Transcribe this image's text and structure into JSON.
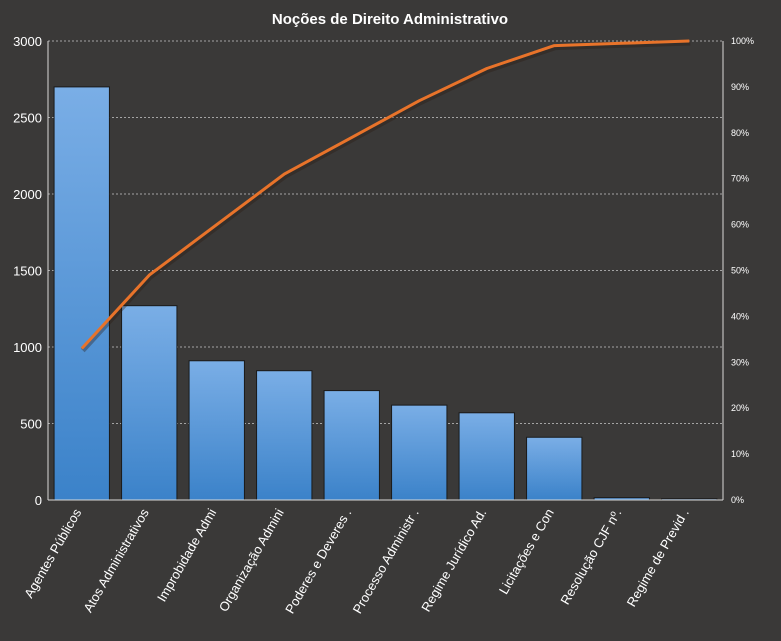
{
  "chart_data": {
    "type": "bar",
    "title": "Noções de Direito  Administrativo",
    "categories": [
      "Agentes Públicos",
      "Atos Administrativos",
      "Improbidade Admi",
      "Organização Admini",
      "Poderes e Deveres .",
      "Processo Administr .",
      "Regime Jurídico Ad.",
      "Licitações e Con",
      "Resolução CJF nº.",
      "Regime de Previd ."
    ],
    "series": [
      {
        "type": "bar",
        "values": [
          2700,
          1270,
          910,
          845,
          715,
          620,
          570,
          410,
          15,
          8
        ]
      },
      {
        "type": "line",
        "axis": "right",
        "values": [
          0.33,
          0.49,
          0.6,
          0.71,
          0.79,
          0.87,
          0.94,
          0.99,
          0.995,
          1.0
        ]
      }
    ],
    "ylim": [
      0,
      3000
    ],
    "yticks": [
      0,
      500,
      1000,
      1500,
      2000,
      2500,
      3000
    ],
    "y2lim": [
      0,
      1
    ],
    "y2ticks": [
      "0%",
      "10%",
      "20%",
      "30%",
      "40%",
      "50%",
      "60%",
      "70%",
      "80%",
      "90%",
      "100%"
    ],
    "grid": true,
    "colors": {
      "background": "#3a3938",
      "bar_top": "#7aaee6",
      "bar_bottom": "#3b82c9",
      "line": "#e8732a",
      "grid": "#c8c8c8",
      "text": "#ffffff"
    }
  }
}
